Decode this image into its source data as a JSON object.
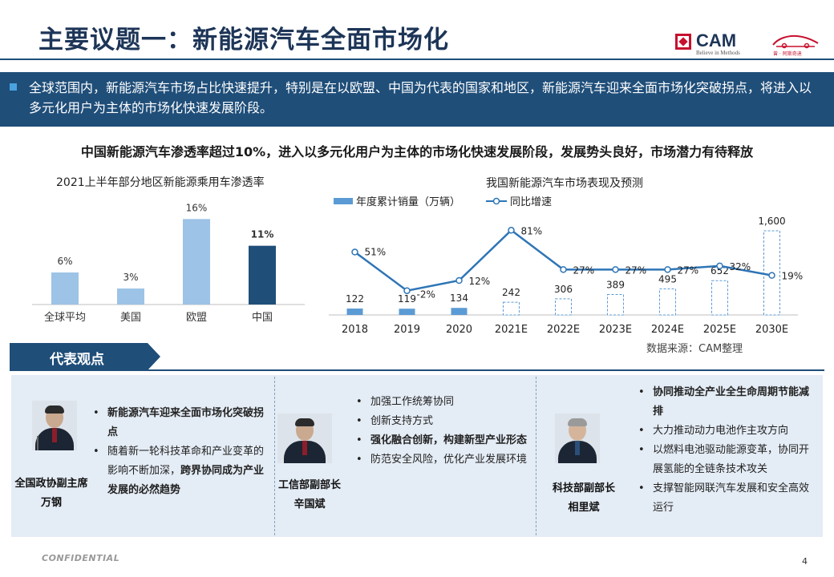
{
  "header": {
    "title": "主要议题一：新能源汽车全面市场化"
  },
  "logos": {
    "cam": {
      "text": "CAM",
      "tagline": "Believe in Methods"
    },
    "car": {
      "tagline": "曾 · 阿斯奇迪"
    }
  },
  "banner": {
    "text": "全球范围内，新能源汽车市场占比快速提升，特别是在以欧盟、中国为代表的国家和地区，新能源汽车迎来全面市场化突破拐点，将进入以多元化用户为主体的市场化快速发展阶段。"
  },
  "subtitle": "中国新能源汽车渗透率超过10%，进入以多元化用户为主体的市场化快速发展阶段，发展势头良好，市场潜力有待释放",
  "chart_data": [
    {
      "type": "bar",
      "title": "2021上半年部分地区新能源乘用车渗透率",
      "categories": [
        "全球平均",
        "美国",
        "欧盟",
        "中国"
      ],
      "values": [
        6,
        3,
        16,
        11
      ],
      "value_labels": [
        "6%",
        "3%",
        "16%",
        "11%"
      ],
      "ylim": [
        0,
        18
      ],
      "highlight_index": 3,
      "colors": {
        "bar": "#9dc3e6",
        "highlight": "#1f4e79"
      },
      "grid": false
    },
    {
      "type": "bar+line",
      "title": "我国新能源汽车市场表现及预测",
      "categories": [
        "2018",
        "2019",
        "2020",
        "2021E",
        "2022E",
        "2023E",
        "2024E",
        "2025E",
        "2030E"
      ],
      "legend_position": "top-left",
      "series": [
        {
          "name": "年度累计销量（万辆）",
          "type": "bar",
          "values": [
            122,
            119,
            134,
            242,
            306,
            389,
            495,
            652,
            1600
          ],
          "value_labels": [
            "122",
            "119",
            "134",
            "242",
            "306",
            "389",
            "495",
            "652",
            "1,600"
          ],
          "forecast_from_index": 3,
          "color": "#5b9bd5"
        },
        {
          "name": "同比增速",
          "type": "line",
          "values": [
            51,
            -2,
            12,
            81,
            27,
            27,
            27,
            32,
            19
          ],
          "value_labels": [
            "51%",
            "-2%",
            "12%",
            "81%",
            "27%",
            "27%",
            "27%",
            "32%",
            "19%"
          ],
          "color": "#2e75b6"
        }
      ],
      "bar_ylim": [
        0,
        1700
      ],
      "line_ylim": [
        -10,
        100
      ],
      "grid": false
    }
  ],
  "source": "数据来源：CAM整理",
  "opinions": {
    "label": "代表观点",
    "people": [
      {
        "title": "全国政协副主席",
        "name": "万钢",
        "points": [
          {
            "parts": [
              {
                "t": "新能源汽车迎来全面市场化突破拐点",
                "b": true
              }
            ]
          },
          {
            "parts": [
              {
                "t": "随着新一轮科技革命和产业变革的影响不断加深，",
                "b": false
              },
              {
                "t": "跨界协同成为产业发展的必然趋势",
                "b": true
              }
            ]
          }
        ]
      },
      {
        "title": "工信部副部长",
        "name": "辛国斌",
        "points": [
          {
            "parts": [
              {
                "t": "加强工作统筹协同",
                "b": false
              }
            ]
          },
          {
            "parts": [
              {
                "t": "创新支持方式",
                "b": false
              }
            ]
          },
          {
            "parts": [
              {
                "t": "强化融合创新，构建新型产业形态",
                "b": true
              }
            ]
          },
          {
            "parts": [
              {
                "t": "防范安全风险，优化产业发展环境",
                "b": false
              }
            ]
          }
        ]
      },
      {
        "title": "科技部副部长",
        "name": "相里斌",
        "points": [
          {
            "parts": [
              {
                "t": "协同推动全产业全生命周期节能减排",
                "b": true
              }
            ]
          },
          {
            "parts": [
              {
                "t": "大力推动动力电池作主攻方向",
                "b": false
              }
            ]
          },
          {
            "parts": [
              {
                "t": "以燃料电池驱动能源变革，协同开展氢能的全链条技术攻关",
                "b": false
              }
            ]
          },
          {
            "parts": [
              {
                "t": "支撑智能网联汽车发展和安全高效运行",
                "b": false
              }
            ]
          }
        ]
      }
    ]
  },
  "footer": {
    "confidential": "CONFIDENTIAL",
    "page": "4"
  }
}
